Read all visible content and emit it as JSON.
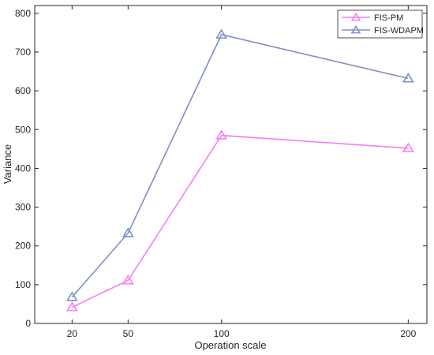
{
  "chart_data": {
    "type": "line",
    "title": "",
    "xlabel": "Operation scale",
    "ylabel": "Variance",
    "x": [
      20,
      50,
      100,
      200
    ],
    "x_tick_labels": [
      "20",
      "50",
      "100",
      "200"
    ],
    "xlim": [
      0,
      210
    ],
    "ylim": [
      0,
      820
    ],
    "y_ticks": [
      0,
      100,
      200,
      300,
      400,
      500,
      600,
      700,
      800
    ],
    "y_tick_labels": [
      "0",
      "100",
      "200",
      "300",
      "400",
      "500",
      "600",
      "700",
      "800"
    ],
    "grid": false,
    "legend_position": "top-right",
    "marker": "triangle",
    "series": [
      {
        "name": "FIS-PM",
        "color": "#f77ef0",
        "values": [
          42,
          111,
          485,
          452
        ]
      },
      {
        "name": "FIS-WDAPM",
        "color": "#7f8fc4",
        "values": [
          68,
          233,
          745,
          632
        ]
      }
    ]
  }
}
